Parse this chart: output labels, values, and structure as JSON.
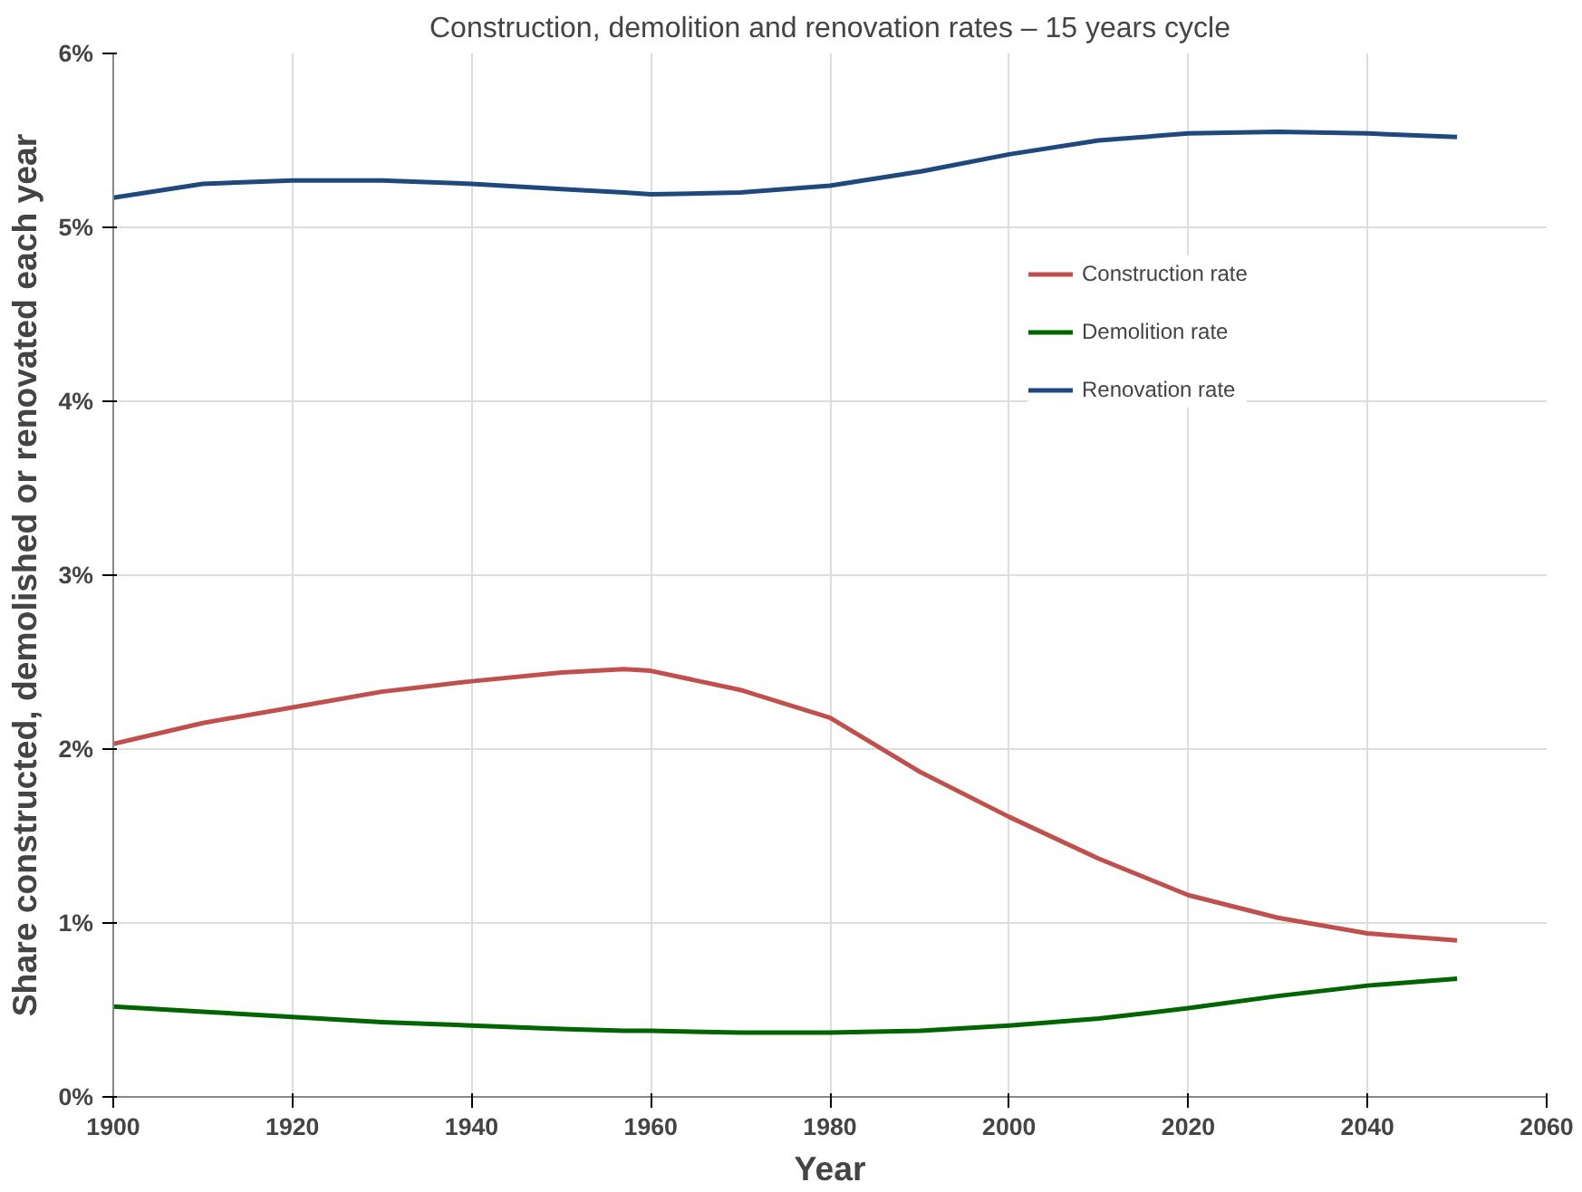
{
  "chart_data": {
    "type": "line",
    "title": "Construction, demolition and renovation rates – 15 years cycle",
    "xlabel": "Year",
    "ylabel": "Share constructed, demolished or renovated each year",
    "x": [
      1900,
      1910,
      1920,
      1930,
      1940,
      1950,
      1957,
      1960,
      1970,
      1980,
      1990,
      2000,
      2010,
      2020,
      2030,
      2040,
      2050
    ],
    "series": [
      {
        "name": "Construction rate",
        "color": "#c0504d",
        "values": [
          2.03,
          2.15,
          2.24,
          2.33,
          2.39,
          2.44,
          2.46,
          2.45,
          2.34,
          2.18,
          1.87,
          1.61,
          1.37,
          1.16,
          1.03,
          0.94,
          0.9
        ]
      },
      {
        "name": "Demolition rate",
        "color": "#006400",
        "values": [
          0.52,
          0.49,
          0.46,
          0.43,
          0.41,
          0.39,
          0.38,
          0.38,
          0.37,
          0.37,
          0.38,
          0.41,
          0.45,
          0.51,
          0.58,
          0.64,
          0.68
        ]
      },
      {
        "name": "Renovation rate",
        "color": "#1f497d",
        "values": [
          5.17,
          5.25,
          5.27,
          5.27,
          5.25,
          5.22,
          5.2,
          5.19,
          5.2,
          5.24,
          5.32,
          5.42,
          5.5,
          5.54,
          5.55,
          5.54,
          5.52
        ]
      }
    ],
    "xlim": [
      1900,
      2060
    ],
    "xticks": [
      1900,
      1920,
      1940,
      1960,
      1980,
      2000,
      2020,
      2040,
      2060
    ],
    "ylim": [
      0,
      6
    ],
    "yticks": [
      {
        "value": 0,
        "label": "0%"
      },
      {
        "value": 1,
        "label": "1%"
      },
      {
        "value": 2,
        "label": "2%"
      },
      {
        "value": 3,
        "label": "3%"
      },
      {
        "value": 4,
        "label": "4%"
      },
      {
        "value": 5,
        "label": "5%"
      },
      {
        "value": 6,
        "label": "6%"
      }
    ],
    "grid": true,
    "legend": "right",
    "marker": "none",
    "line_style": "solid"
  }
}
